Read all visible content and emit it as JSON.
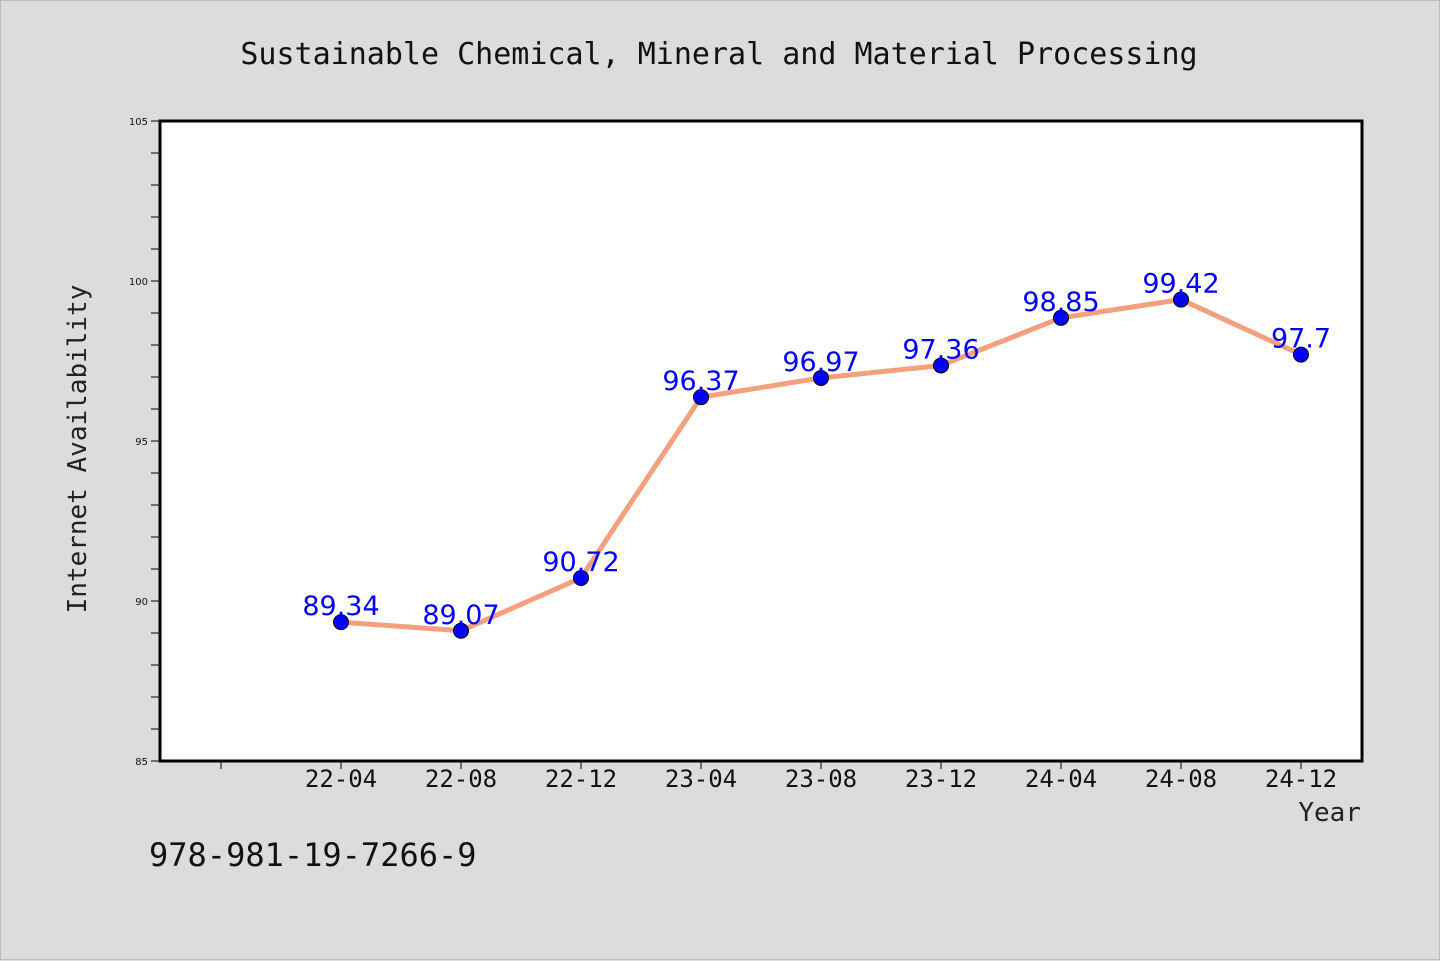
{
  "chart_data": {
    "type": "line",
    "title": "Sustainable Chemical, Mineral and Material Processing",
    "xlabel": "Year",
    "ylabel": "Internet Availability",
    "categories": [
      "22-04",
      "22-08",
      "22-12",
      "23-04",
      "23-08",
      "23-12",
      "24-04",
      "24-08",
      "24-12"
    ],
    "values": [
      89.34,
      89.07,
      90.72,
      96.37,
      96.97,
      97.36,
      98.85,
      99.42,
      97.7
    ],
    "data_labels": [
      "89.34",
      "89.07",
      "90.72",
      "96.37",
      "96.97",
      "97.36",
      "98.85",
      "99.42",
      "97.7"
    ],
    "ylim": [
      85,
      105
    ],
    "yticks": [
      "85",
      "90",
      "95",
      "100",
      "105"
    ],
    "grid": false,
    "line_color": "#f4a07e",
    "marker_color": "#0000ff"
  },
  "footer": {
    "isbn": "978-981-19-7266-9"
  }
}
